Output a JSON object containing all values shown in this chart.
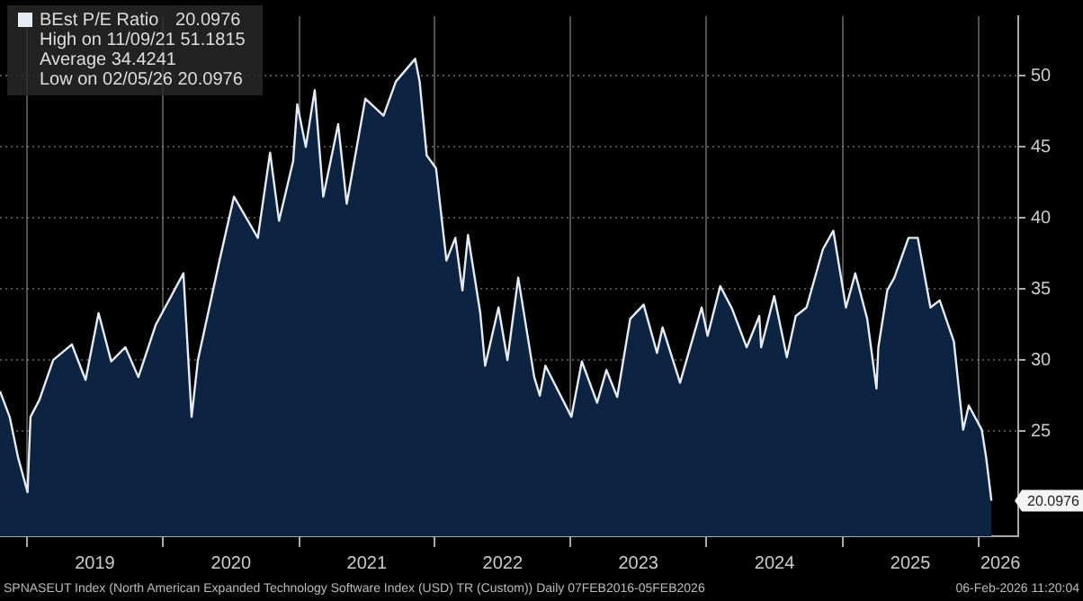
{
  "chart_data": {
    "type": "area",
    "legend": "top left",
    "grid": true,
    "xlim": [
      "2018-10-20",
      "2026-04-18"
    ],
    "ylim": [
      17.6,
      54.2
    ],
    "yticks": [
      25,
      30,
      35,
      40,
      45,
      50
    ],
    "xticks": [
      {
        "value": "2019-01-01",
        "label": null
      },
      {
        "value": "2019-07-02",
        "label": "2019"
      },
      {
        "value": "2020-01-01",
        "label": null
      },
      {
        "value": "2020-07-02",
        "label": "2020"
      },
      {
        "value": "2021-01-01",
        "label": null
      },
      {
        "value": "2021-07-02",
        "label": "2021"
      },
      {
        "value": "2022-01-01",
        "label": null
      },
      {
        "value": "2022-07-02",
        "label": "2022"
      },
      {
        "value": "2023-01-01",
        "label": null
      },
      {
        "value": "2023-07-02",
        "label": "2023"
      },
      {
        "value": "2024-01-01",
        "label": null
      },
      {
        "value": "2024-07-02",
        "label": "2024"
      },
      {
        "value": "2025-01-01",
        "label": null
      },
      {
        "value": "2025-07-02",
        "label": "2025"
      },
      {
        "value": "2026-01-01",
        "label": null
      },
      {
        "value": "2026-03-01",
        "label": "2026"
      }
    ],
    "x": [
      "2018-10-20",
      "2018-11-15",
      "2018-12-08",
      "2019-01-02",
      "2019-01-10",
      "2019-02-03",
      "2019-03-12",
      "2019-05-01",
      "2019-06-07",
      "2019-07-12",
      "2019-08-15",
      "2019-09-22",
      "2019-10-27",
      "2019-12-13",
      "2020-02-25",
      "2020-03-18",
      "2020-04-04",
      "2020-06-01",
      "2020-07-10",
      "2020-09-12",
      "2020-10-15",
      "2020-11-08",
      "2020-12-16",
      "2020-12-27",
      "2021-01-19",
      "2021-02-12",
      "2021-03-07",
      "2021-04-16",
      "2021-05-09",
      "2021-06-28",
      "2021-08-16",
      "2021-09-18",
      "2021-11-09",
      "2021-11-21",
      "2021-12-10",
      "2022-01-04",
      "2022-02-01",
      "2022-02-25",
      "2022-03-16",
      "2022-03-31",
      "2022-05-03",
      "2022-05-16",
      "2022-06-21",
      "2022-07-15",
      "2022-08-13",
      "2022-09-25",
      "2022-10-10",
      "2022-10-25",
      "2023-01-03",
      "2023-01-31",
      "2023-03-13",
      "2023-04-07",
      "2023-05-06",
      "2023-06-10",
      "2023-07-16",
      "2023-08-21",
      "2023-09-05",
      "2023-10-22",
      "2023-12-19",
      "2024-01-04",
      "2024-02-07",
      "2024-03-10",
      "2024-04-18",
      "2024-05-22",
      "2024-05-27",
      "2024-07-01",
      "2024-08-04",
      "2024-08-28",
      "2024-09-26",
      "2024-11-09",
      "2024-12-07",
      "2025-01-10",
      "2025-02-04",
      "2025-03-08",
      "2025-04-02",
      "2025-04-07",
      "2025-05-01",
      "2025-05-20",
      "2025-06-27",
      "2025-07-22",
      "2025-08-25",
      "2025-09-19",
      "2025-10-27",
      "2025-11-21",
      "2025-12-06",
      "2026-01-10",
      "2026-01-22",
      "2026-02-05"
    ],
    "series": [
      {
        "name": "BEst P/E Ratio",
        "color": "#e6ecf3",
        "values": [
          27.8,
          26.0,
          23.1,
          20.7,
          26.0,
          27.2,
          30.0,
          31.1,
          28.6,
          33.3,
          29.9,
          30.9,
          28.8,
          32.5,
          36.1,
          26.0,
          30.0,
          37.0,
          41.5,
          38.6,
          44.6,
          39.8,
          44.0,
          48.0,
          45.0,
          49.0,
          41.5,
          46.6,
          41.0,
          48.4,
          47.2,
          49.6,
          51.2,
          49.6,
          44.4,
          43.5,
          37.0,
          38.6,
          34.9,
          38.8,
          33.3,
          29.6,
          33.7,
          30.0,
          35.8,
          28.8,
          27.5,
          29.6,
          26.0,
          29.9,
          27.0,
          29.3,
          27.4,
          32.9,
          33.9,
          30.5,
          32.3,
          28.4,
          33.7,
          31.7,
          35.2,
          33.6,
          30.9,
          33.1,
          30.9,
          34.5,
          30.2,
          33.1,
          33.7,
          37.8,
          39.1,
          33.7,
          36.1,
          32.9,
          28.0,
          30.9,
          34.9,
          35.8,
          38.6,
          38.6,
          33.7,
          34.2,
          31.3,
          25.1,
          26.8,
          25.1,
          23.1,
          20.1
        ]
      }
    ],
    "annotations": [
      "20.0976",
      "High on 11/09/21 51.1815",
      "Average 34.4241",
      "Low on 02/05/26 20.0976",
      {
        "text": "20.0976",
        "x": "2026-02-05",
        "y": 20.0976
      },
      "SPNASEUT Index (North American Expanded Technology Software Index (USD) TR (Custom)) Daily 07FEB2016-05FEB2026",
      "06-Feb-2026 11:20:04"
    ]
  }
}
